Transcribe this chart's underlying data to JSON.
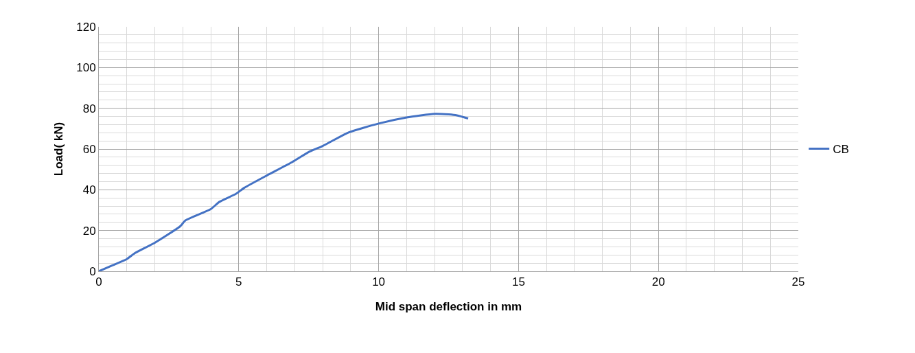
{
  "chart_data": {
    "type": "line",
    "xlabel": "Mid span deflection in mm",
    "ylabel": "Load( kN)",
    "xlim": [
      0,
      25
    ],
    "xticks": [
      0,
      5,
      10,
      15,
      20,
      25
    ],
    "ylim": [
      0,
      120
    ],
    "yticks": [
      0,
      20,
      40,
      60,
      80,
      100,
      120
    ],
    "grid": true,
    "legend": "right",
    "marker": "none",
    "line_style": "solid",
    "series": [
      {
        "name": "CB",
        "color": "#4472c4",
        "x": [
          0,
          0.5,
          1,
          1.3,
          2,
          2.9,
          3.1,
          4,
          4.3,
          4.9,
          5.2,
          6,
          6.9,
          7.5,
          8,
          8.9,
          10,
          11,
          12,
          12.5,
          12.8,
          13.2
        ],
        "values": [
          0,
          3,
          6,
          9,
          14,
          22,
          25,
          30.5,
          34,
          38,
          41,
          47,
          53.5,
          58.5,
          61.5,
          68,
          72.5,
          75.5,
          77.3,
          77,
          76.5,
          75
        ]
      }
    ]
  }
}
